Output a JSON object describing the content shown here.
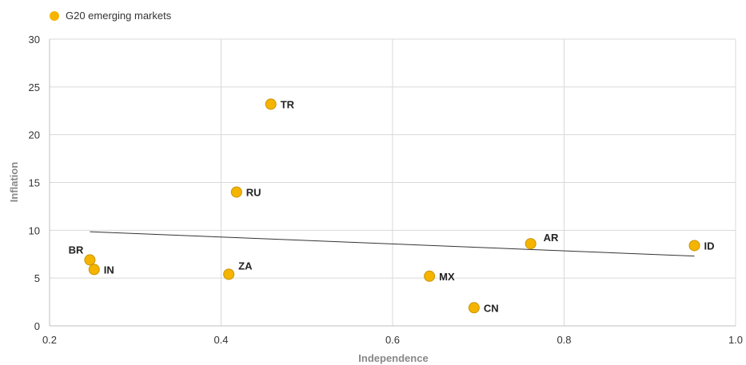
{
  "chart_data": {
    "type": "scatter",
    "title": "",
    "xlabel": "Independence",
    "ylabel": "Inflation",
    "xlim": [
      0.2,
      1.0
    ],
    "ylim": [
      0,
      30
    ],
    "x_ticks": [
      0.2,
      0.4,
      0.6,
      0.8,
      1.0
    ],
    "x_tick_labels": [
      "0.2",
      "0.4",
      "0.6",
      "0.8",
      "1.0"
    ],
    "y_ticks": [
      0,
      5,
      10,
      15,
      20,
      25,
      30
    ],
    "y_tick_labels": [
      "0",
      "5",
      "10",
      "15",
      "20",
      "25",
      "30"
    ],
    "grid": true,
    "legend_position": "top-left",
    "series": [
      {
        "name": "G20 emerging markets",
        "color": "#f5b400",
        "points": [
          {
            "label": "TR",
            "x": 0.458,
            "y": 23.2
          },
          {
            "label": "RU",
            "x": 0.418,
            "y": 14.0
          },
          {
            "label": "BR",
            "x": 0.247,
            "y": 6.9
          },
          {
            "label": "IN",
            "x": 0.252,
            "y": 5.9
          },
          {
            "label": "ZA",
            "x": 0.409,
            "y": 5.4
          },
          {
            "label": "MX",
            "x": 0.643,
            "y": 5.2
          },
          {
            "label": "CN",
            "x": 0.695,
            "y": 1.9
          },
          {
            "label": "AR",
            "x": 0.761,
            "y": 8.6
          },
          {
            "label": "ID",
            "x": 0.952,
            "y": 8.4
          }
        ]
      }
    ],
    "trendline": {
      "x": [
        0.247,
        0.952
      ],
      "y": [
        9.85,
        7.3
      ],
      "color": "#333333"
    }
  }
}
